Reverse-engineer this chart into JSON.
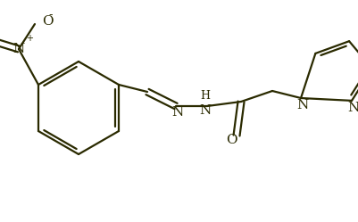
{
  "bg_color": "#ffffff",
  "line_color": "#2a2a00",
  "line_width": 1.6,
  "font_size": 10,
  "figsize": [
    4.02,
    2.49
  ],
  "dpi": 100,
  "xlim": [
    0,
    402
  ],
  "ylim": [
    0,
    249
  ]
}
